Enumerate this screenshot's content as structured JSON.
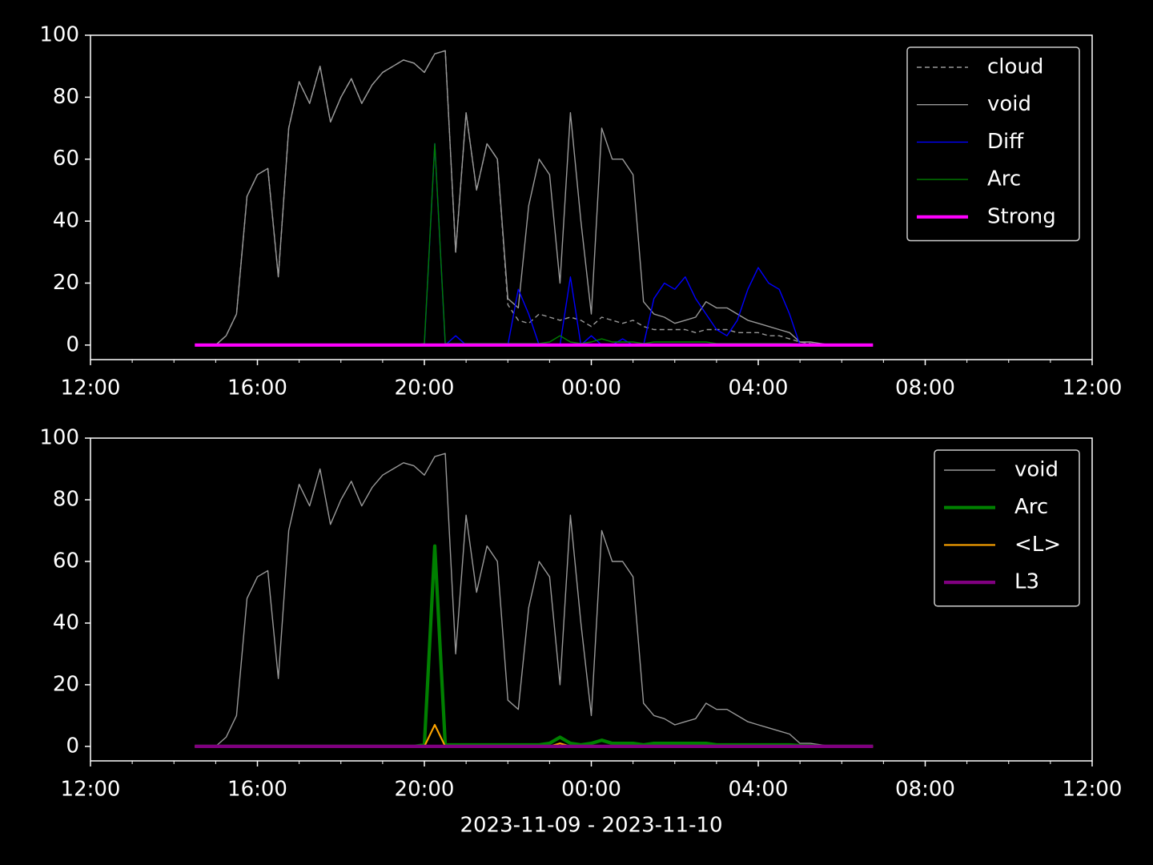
{
  "chart_data": [
    {
      "type": "line",
      "legend": "upper right",
      "xlim": [
        12,
        36
      ],
      "ylim": [
        -4.7,
        100
      ],
      "xticks": [
        {
          "value": 12,
          "label": "12:00"
        },
        {
          "value": 16,
          "label": "16:00"
        },
        {
          "value": 20,
          "label": "20:00"
        },
        {
          "value": 24,
          "label": "00:00"
        },
        {
          "value": 28,
          "label": "04:00"
        },
        {
          "value": 32,
          "label": "08:00"
        },
        {
          "value": 36,
          "label": "12:00"
        }
      ],
      "xminorticks": [
        13,
        14,
        15,
        17,
        18,
        19,
        21,
        22,
        23,
        25,
        26,
        27,
        29,
        30,
        31,
        33,
        34,
        35
      ],
      "yticks": [
        0,
        20,
        40,
        60,
        80,
        100
      ],
      "x": [
        14.5,
        14.75,
        15,
        15.25,
        15.5,
        15.75,
        16,
        16.25,
        16.5,
        16.75,
        17,
        17.25,
        17.5,
        17.75,
        18,
        18.25,
        18.5,
        18.75,
        19,
        19.25,
        19.5,
        19.75,
        20,
        20.25,
        20.5,
        20.75,
        21,
        21.25,
        21.5,
        21.75,
        22,
        22.25,
        22.5,
        22.75,
        23,
        23.25,
        23.5,
        23.75,
        24,
        24.25,
        24.5,
        24.75,
        25,
        25.25,
        25.5,
        25.75,
        26,
        26.25,
        26.5,
        26.75,
        27,
        27.25,
        27.5,
        27.75,
        28,
        28.25,
        28.5,
        28.75,
        29,
        29.25,
        29.5,
        29.75,
        30,
        30.25,
        30.5,
        30.75
      ],
      "series": [
        {
          "name": "cloud",
          "color": "#999999",
          "linestyle": "dashed",
          "linewidth": 1,
          "values": [
            null,
            null,
            0,
            3,
            10,
            48,
            55,
            57,
            22,
            70,
            85,
            78,
            90,
            72,
            80,
            86,
            78,
            84,
            88,
            90,
            92,
            91,
            88,
            94,
            95,
            30,
            75,
            50,
            65,
            60,
            13,
            8,
            7,
            10,
            9,
            8,
            9,
            8,
            6,
            9,
            8,
            7,
            8,
            6,
            5,
            5,
            5,
            5,
            4,
            5,
            5,
            5,
            4,
            4,
            4,
            3,
            3,
            2,
            1,
            0.5,
            0.3,
            0,
            null,
            null,
            null,
            null
          ]
        },
        {
          "name": "void",
          "color": "#999999",
          "linestyle": "solid",
          "linewidth": 1,
          "values": [
            null,
            null,
            0,
            3,
            10,
            48,
            55,
            57,
            22,
            70,
            85,
            78,
            90,
            72,
            80,
            86,
            78,
            84,
            88,
            90,
            92,
            91,
            88,
            94,
            95,
            30,
            75,
            50,
            65,
            60,
            15,
            12,
            45,
            60,
            55,
            20,
            75,
            40,
            10,
            70,
            60,
            60,
            55,
            14,
            10,
            9,
            7,
            8,
            9,
            14,
            12,
            12,
            10,
            8,
            7,
            6,
            5,
            4,
            1,
            1,
            0.5,
            0,
            null,
            null,
            null,
            null
          ]
        },
        {
          "name": "Diff",
          "color": "#0000ff",
          "linestyle": "solid",
          "linewidth": 1,
          "values": [
            0,
            0,
            0,
            0,
            0,
            0,
            0,
            0,
            0,
            0,
            0,
            0,
            0,
            0,
            0,
            0,
            0,
            0,
            0,
            0,
            0,
            0,
            0,
            65,
            0,
            3,
            0,
            0,
            0,
            0,
            0,
            18,
            10,
            0,
            0,
            0,
            22,
            0,
            3,
            0,
            0,
            2,
            0,
            0,
            15,
            20,
            18,
            22,
            15,
            10,
            5,
            3,
            8,
            18,
            25,
            20,
            18,
            10,
            0,
            0,
            0,
            0,
            0,
            0,
            0,
            0
          ]
        },
        {
          "name": "Arc",
          "color": "#008000",
          "linestyle": "solid",
          "linewidth": 1,
          "values": [
            0,
            0,
            0,
            0,
            0,
            0,
            0,
            0,
            0,
            0,
            0,
            0,
            0,
            0,
            0,
            0,
            0,
            0,
            0,
            0,
            0,
            0,
            0.5,
            65,
            0.5,
            0.5,
            0.5,
            0.5,
            0.5,
            0.5,
            0.5,
            0.5,
            0.5,
            0.5,
            1,
            3,
            1,
            0.5,
            1,
            2,
            1,
            1,
            1,
            0.5,
            1,
            1,
            1,
            1,
            1,
            1,
            0.5,
            0.5,
            0.5,
            0.5,
            0.5,
            0.5,
            0.5,
            0.5,
            0.3,
            0.2,
            0,
            0,
            0,
            0,
            0,
            0
          ]
        },
        {
          "name": "Strong",
          "color": "#ff00ff",
          "linestyle": "solid",
          "linewidth": 3,
          "values": [
            0,
            0,
            0,
            0,
            0,
            0,
            0,
            0,
            0,
            0,
            0,
            0,
            0,
            0,
            0,
            0,
            0,
            0,
            0,
            0,
            0,
            0,
            0,
            0,
            0,
            0,
            0,
            0,
            0,
            0,
            0,
            0,
            0,
            0,
            0,
            0,
            0,
            0,
            0,
            0,
            0,
            0,
            0,
            0,
            0,
            0,
            0,
            0,
            0,
            0,
            0,
            0,
            0,
            0,
            0,
            0,
            0,
            0,
            0,
            0,
            0,
            0,
            0,
            0,
            0,
            0
          ]
        }
      ]
    },
    {
      "type": "line",
      "legend": "upper right",
      "xlabel": "2023-11-09 - 2023-11-10",
      "xlim": [
        12,
        36
      ],
      "ylim": [
        -4.7,
        100
      ],
      "xticks": [
        {
          "value": 12,
          "label": "12:00"
        },
        {
          "value": 16,
          "label": "16:00"
        },
        {
          "value": 20,
          "label": "20:00"
        },
        {
          "value": 24,
          "label": "00:00"
        },
        {
          "value": 28,
          "label": "04:00"
        },
        {
          "value": 32,
          "label": "08:00"
        },
        {
          "value": 36,
          "label": "12:00"
        }
      ],
      "xminorticks": [
        13,
        14,
        15,
        17,
        18,
        19,
        21,
        22,
        23,
        25,
        26,
        27,
        29,
        30,
        31,
        33,
        34,
        35
      ],
      "yticks": [
        0,
        20,
        40,
        60,
        80,
        100
      ],
      "x": [
        14.5,
        14.75,
        15,
        15.25,
        15.5,
        15.75,
        16,
        16.25,
        16.5,
        16.75,
        17,
        17.25,
        17.5,
        17.75,
        18,
        18.25,
        18.5,
        18.75,
        19,
        19.25,
        19.5,
        19.75,
        20,
        20.25,
        20.5,
        20.75,
        21,
        21.25,
        21.5,
        21.75,
        22,
        22.25,
        22.5,
        22.75,
        23,
        23.25,
        23.5,
        23.75,
        24,
        24.25,
        24.5,
        24.75,
        25,
        25.25,
        25.5,
        25.75,
        26,
        26.25,
        26.5,
        26.75,
        27,
        27.25,
        27.5,
        27.75,
        28,
        28.25,
        28.5,
        28.75,
        29,
        29.25,
        29.5,
        29.75,
        30,
        30.25,
        30.5,
        30.75
      ],
      "series": [
        {
          "name": "void",
          "color": "#999999",
          "linestyle": "solid",
          "linewidth": 1,
          "values": [
            null,
            null,
            0,
            3,
            10,
            48,
            55,
            57,
            22,
            70,
            85,
            78,
            90,
            72,
            80,
            86,
            78,
            84,
            88,
            90,
            92,
            91,
            88,
            94,
            95,
            30,
            75,
            50,
            65,
            60,
            15,
            12,
            45,
            60,
            55,
            20,
            75,
            40,
            10,
            70,
            60,
            60,
            55,
            14,
            10,
            9,
            7,
            8,
            9,
            14,
            12,
            12,
            10,
            8,
            7,
            6,
            5,
            4,
            1,
            1,
            0.5,
            0,
            null,
            null,
            null,
            null
          ]
        },
        {
          "name": "Arc",
          "color": "#008000",
          "linestyle": "solid",
          "linewidth": 3,
          "values": [
            0,
            0,
            0,
            0,
            0,
            0,
            0,
            0,
            0,
            0,
            0,
            0,
            0,
            0,
            0,
            0,
            0,
            0,
            0,
            0,
            0,
            0,
            0.5,
            65,
            0.5,
            0.5,
            0.5,
            0.5,
            0.5,
            0.5,
            0.5,
            0.5,
            0.5,
            0.5,
            1,
            3,
            1,
            0.5,
            1,
            2,
            1,
            1,
            1,
            0.5,
            1,
            1,
            1,
            1,
            1,
            1,
            0.5,
            0.5,
            0.5,
            0.5,
            0.5,
            0.5,
            0.5,
            0.5,
            0.3,
            0.2,
            0,
            0,
            0,
            0,
            0,
            0
          ]
        },
        {
          "name": "<L>",
          "color": "#ffa500",
          "linestyle": "solid",
          "linewidth": 1.5,
          "values": [
            0,
            0,
            0,
            0,
            0,
            0,
            0,
            0,
            0,
            0,
            0,
            0,
            0,
            0,
            0,
            0,
            0,
            0,
            0,
            0,
            0,
            0,
            0,
            7,
            0,
            0,
            0,
            0,
            0,
            0,
            0,
            0,
            0,
            0,
            0,
            1,
            0,
            0,
            0,
            0,
            0,
            0,
            0,
            0,
            0,
            0,
            0,
            0,
            0,
            0,
            0,
            0,
            0,
            0,
            0,
            0,
            0,
            0,
            0,
            0,
            0,
            0,
            0,
            0,
            0,
            0
          ]
        },
        {
          "name": "L3",
          "color": "#800080",
          "linestyle": "solid",
          "linewidth": 3,
          "values": [
            0,
            0,
            0,
            0,
            0,
            0,
            0,
            0,
            0,
            0,
            0,
            0,
            0,
            0,
            0,
            0,
            0,
            0,
            0,
            0,
            0,
            0,
            0,
            0,
            0,
            0,
            0,
            0,
            0,
            0,
            0,
            0,
            0,
            0,
            0,
            0,
            0,
            0,
            0,
            0,
            0,
            0,
            0,
            0,
            0,
            0,
            0,
            0,
            0,
            0,
            0,
            0,
            0,
            0,
            0,
            0,
            0,
            0,
            0,
            0,
            0,
            0,
            0,
            0,
            0,
            0
          ]
        }
      ]
    }
  ]
}
